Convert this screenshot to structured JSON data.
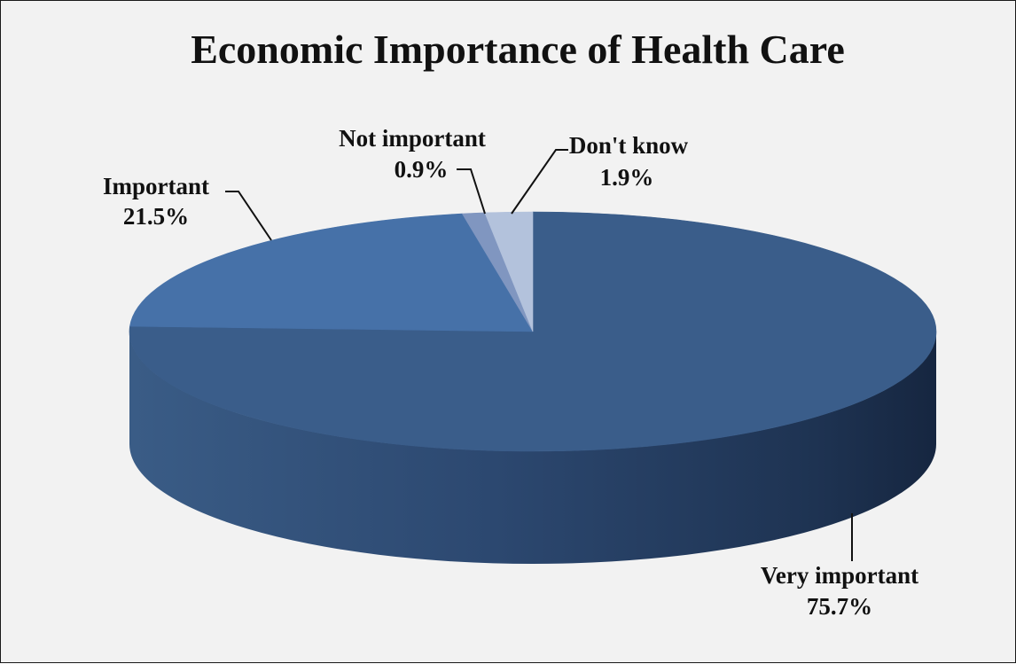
{
  "chart_data": {
    "type": "pie",
    "title": "Economic Importance of Health Care",
    "style": "3d",
    "legend": "none",
    "slices": [
      {
        "label": "Very important",
        "value": 75.7,
        "value_label": "75.7%",
        "color": "#3a5d8a"
      },
      {
        "label": "Important",
        "value": 21.5,
        "value_label": "21.5%",
        "color": "#4671a8"
      },
      {
        "label": "Not important",
        "value": 0.9,
        "value_label": "0.9%",
        "color": "#8096c0"
      },
      {
        "label": "Don't know",
        "value": 1.9,
        "value_label": "1.9%",
        "color": "#b3c2dc"
      }
    ]
  },
  "colors": {
    "background": "#f2f2f2",
    "border": "#1a1a1a",
    "text": "#111111"
  }
}
